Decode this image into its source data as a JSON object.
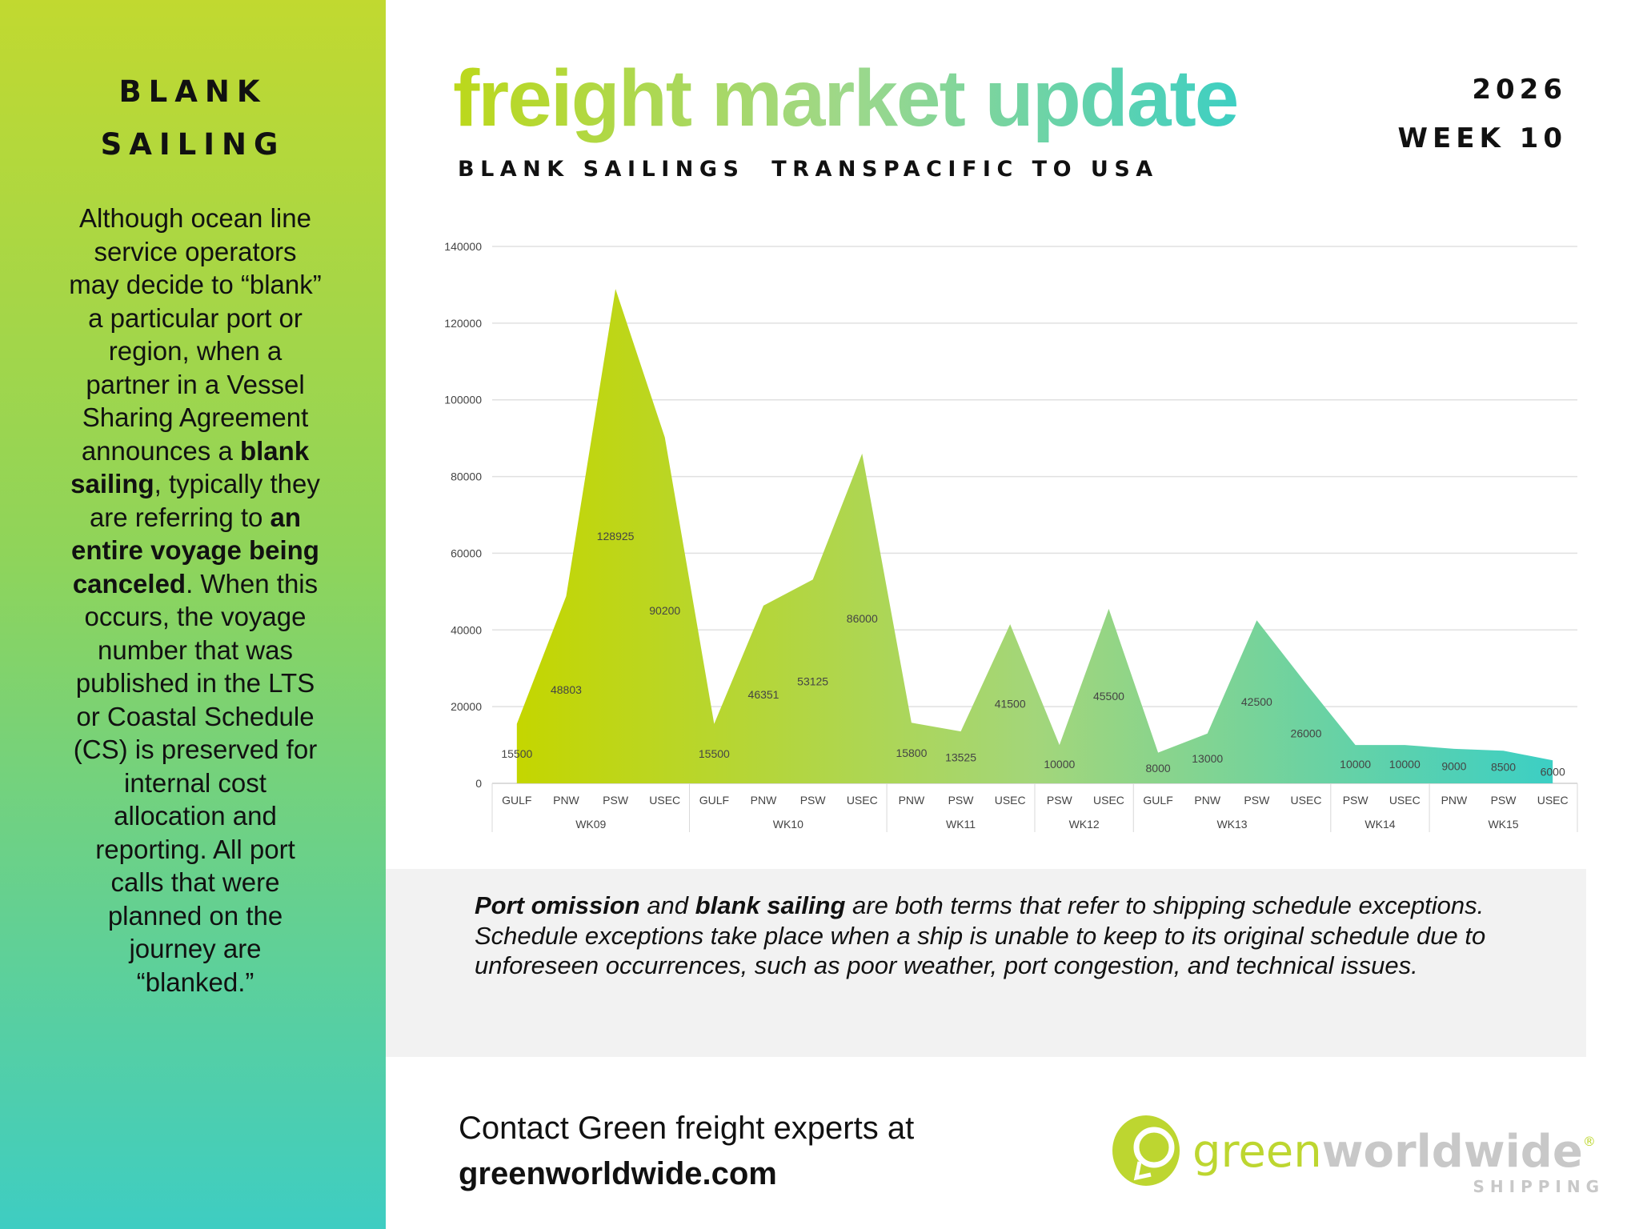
{
  "sidebar": {
    "heading_line1": "BLANK",
    "heading_line2": "SAILING",
    "text_segments": [
      {
        "t": "Although ocean line service operators may decide to “blank” a particular port or region, when a partner in a Vessel Sharing Agreement announces a ",
        "b": false
      },
      {
        "t": "blank sailing",
        "b": true
      },
      {
        "t": ", typically they are referring to ",
        "b": false
      },
      {
        "t": "an entire voyage being canceled",
        "b": true
      },
      {
        "t": ". When this occurs, the voyage number that was published in the LTS or Coastal Schedule (CS) is preserved for internal cost allocation and reporting. All port calls that were planned on the journey are “blanked.”",
        "b": false
      }
    ]
  },
  "header": {
    "title": "freight market update",
    "year": "2026",
    "week": "WEEK 10",
    "subtitle": "BLANK SAILINGS  TRANSPACIFIC TO USA"
  },
  "colors": {
    "gradient_start": "#c4d600",
    "gradient_end": "#3ccfc4",
    "sidebar_top": "#c1d930",
    "sidebar_bottom": "#3ecdc2",
    "note_bg": "#f2f2f2"
  },
  "chart_data": {
    "type": "area",
    "ylim": [
      0,
      140000
    ],
    "yticks": [
      0,
      20000,
      40000,
      60000,
      80000,
      100000,
      120000,
      140000
    ],
    "grid": true,
    "groups": [
      {
        "name": "WK09",
        "categories": [
          "GULF",
          "PNW",
          "PSW",
          "USEC"
        ],
        "values": [
          15500,
          48803,
          128925,
          90200
        ]
      },
      {
        "name": "WK10",
        "categories": [
          "GULF",
          "PNW",
          "PSW",
          "USEC"
        ],
        "values": [
          15500,
          46351,
          53125,
          86000
        ]
      },
      {
        "name": "WK11",
        "categories": [
          "PNW",
          "PSW",
          "USEC"
        ],
        "values": [
          15800,
          13525,
          41500
        ]
      },
      {
        "name": "WK12",
        "categories": [
          "PSW",
          "USEC"
        ],
        "values": [
          10000,
          45500
        ]
      },
      {
        "name": "WK13",
        "categories": [
          "GULF",
          "PNW",
          "PSW",
          "USEC"
        ],
        "values": [
          8000,
          13000,
          42500,
          26000
        ]
      },
      {
        "name": "WK14",
        "categories": [
          "PSW",
          "USEC"
        ],
        "values": [
          10000,
          10000
        ]
      },
      {
        "name": "WK15",
        "categories": [
          "PNW",
          "PSW",
          "USEC"
        ],
        "values": [
          9000,
          8500,
          6000
        ]
      }
    ]
  },
  "note": {
    "term1": "Port omission",
    "and": " and ",
    "term2": "blank sailing",
    "rest": " are both terms that refer to shipping schedule exceptions. Schedule exceptions take place when a ship is unable to keep to its original schedule due to unforeseen occurrences, such as poor weather, port congestion, and technical issues."
  },
  "contact": {
    "line1": "Contact Green freight experts at",
    "link": "greenworldwide.com"
  },
  "logo": {
    "word1": "green",
    "word2": "worldwide",
    "sub": "SHIPPING",
    "reg": "®"
  }
}
